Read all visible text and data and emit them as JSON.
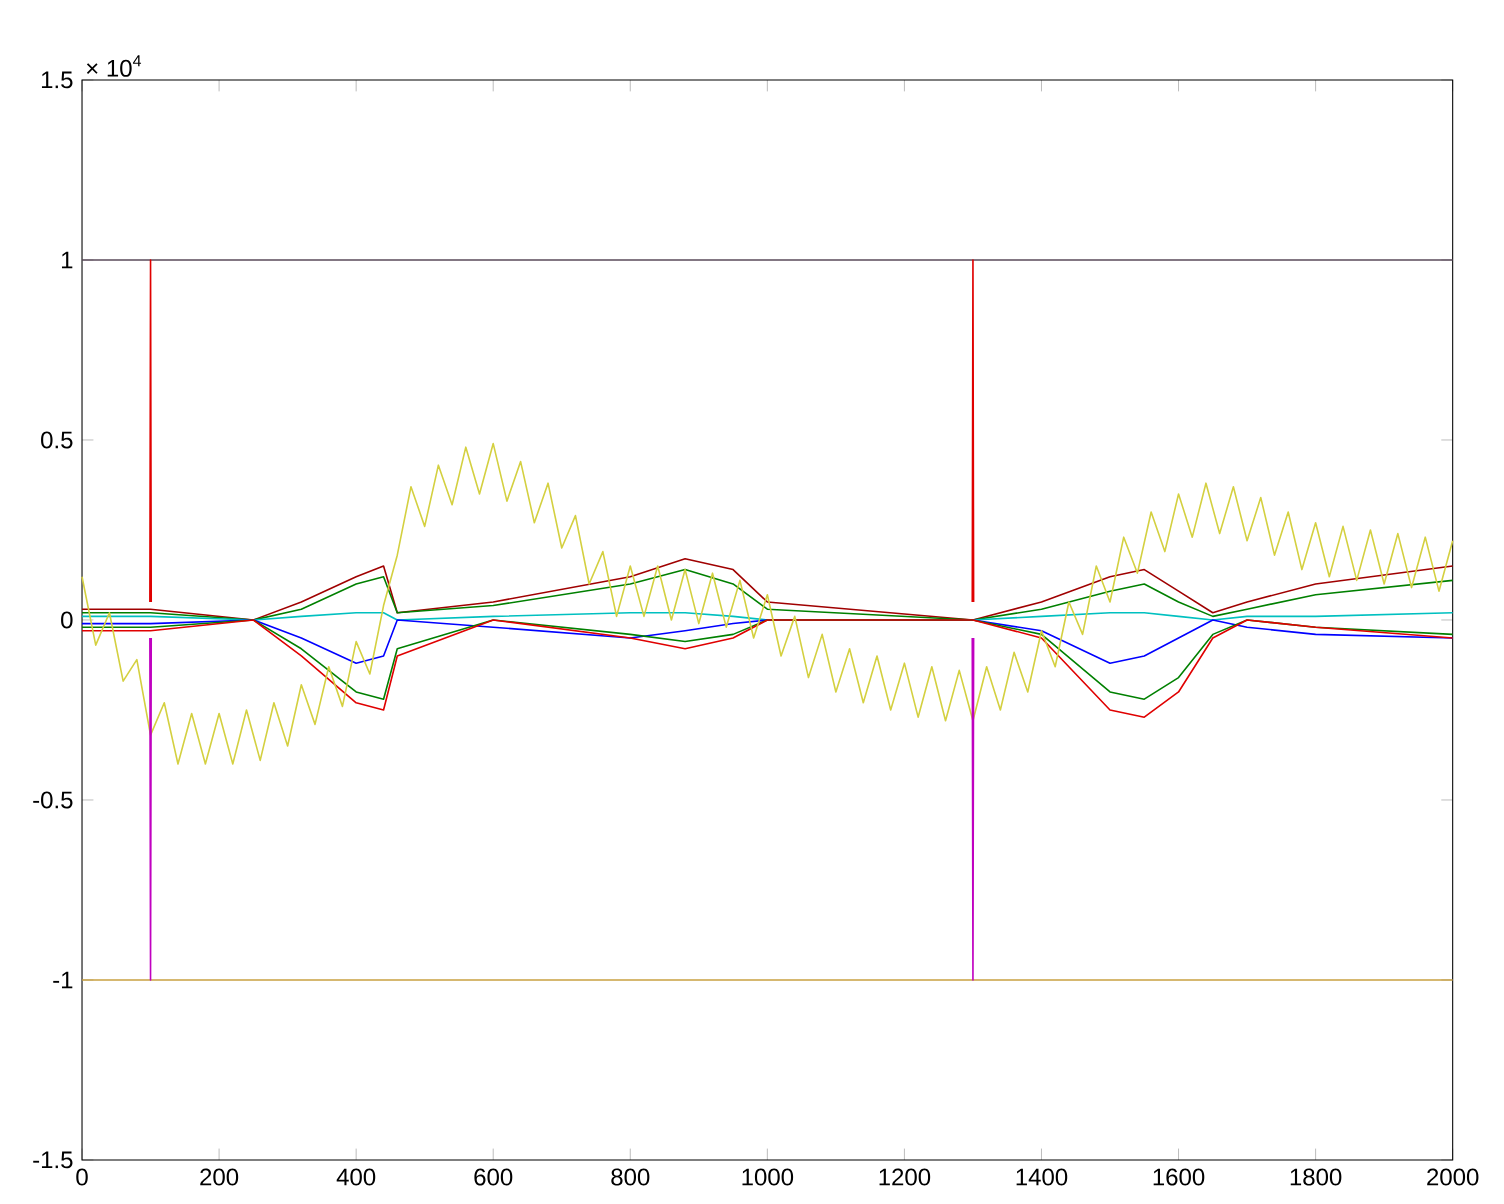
{
  "chart_data": {
    "type": "line",
    "annotations": [
      "× 10$^{4}$"
    ],
    "x": [
      0,
      100,
      250,
      320,
      400,
      440,
      460,
      600,
      800,
      880,
      950,
      1000,
      1300,
      1400,
      1500,
      1550,
      1600,
      1650,
      1700,
      1800,
      2000
    ],
    "xlim": [
      0,
      2000
    ],
    "xticks": [
      0,
      200,
      400,
      600,
      800,
      1000,
      1200,
      1400,
      1600,
      1800,
      2000
    ],
    "ylim": [
      -1.5,
      1.5
    ],
    "yticks": [
      -1.5,
      -1,
      -0.5,
      0,
      0.5,
      1,
      1.5
    ],
    "marker": "none",
    "line_style": "solid",
    "series": [
      {
        "color": "#5a4a5a",
        "x": [
          0,
          2000
        ],
        "values": [
          1,
          1
        ]
      },
      {
        "color": "#c8a040",
        "x": [
          0,
          2000
        ],
        "values": [
          -1,
          -1
        ]
      },
      {
        "color": "#a00000",
        "values": [
          0.03,
          0.03,
          0,
          0.05,
          0.12,
          0.15,
          0.02,
          0.05,
          0.12,
          0.17,
          0.14,
          0.05,
          0,
          0.05,
          0.12,
          0.14,
          0.08,
          0.02,
          0.05,
          0.1,
          0.15
        ]
      },
      {
        "color": "#008000",
        "values": [
          0.02,
          0.02,
          0,
          0.03,
          0.1,
          0.12,
          0.02,
          0.04,
          0.1,
          0.14,
          0.1,
          0.03,
          0,
          0.03,
          0.08,
          0.1,
          0.05,
          0.01,
          0.03,
          0.07,
          0.11
        ]
      },
      {
        "color": "#00c0c0",
        "values": [
          0.01,
          0.01,
          0,
          0.01,
          0.02,
          0.02,
          0,
          0.01,
          0.02,
          0.02,
          0.01,
          0,
          0,
          0.01,
          0.02,
          0.02,
          0.01,
          0,
          0.01,
          0.01,
          0.02
        ]
      },
      {
        "color": "#0000ff",
        "values": [
          -0.01,
          -0.01,
          0,
          -0.05,
          -0.12,
          -0.1,
          0,
          -0.02,
          -0.05,
          -0.03,
          -0.01,
          0,
          0,
          -0.03,
          -0.12,
          -0.1,
          -0.05,
          0,
          -0.02,
          -0.04,
          -0.05
        ]
      },
      {
        "color": "#008000",
        "values": [
          -0.02,
          -0.02,
          0,
          -0.08,
          -0.2,
          -0.22,
          -0.08,
          0,
          -0.04,
          -0.06,
          -0.04,
          0,
          0,
          -0.04,
          -0.2,
          -0.22,
          -0.16,
          -0.04,
          0,
          -0.02,
          -0.04
        ]
      },
      {
        "color": "#e00000",
        "values": [
          -0.03,
          -0.03,
          0,
          -0.1,
          -0.23,
          -0.25,
          -0.1,
          0,
          -0.05,
          -0.08,
          -0.05,
          0,
          0,
          -0.05,
          -0.25,
          -0.27,
          -0.2,
          -0.05,
          0,
          -0.02,
          -0.05
        ]
      },
      {
        "color": "#d4d040",
        "x": [
          0,
          20,
          40,
          60,
          80,
          100,
          120,
          140,
          160,
          180,
          200,
          220,
          240,
          260,
          280,
          300,
          320,
          340,
          360,
          380,
          400,
          420,
          440,
          460,
          480,
          500,
          520,
          540,
          560,
          580,
          600,
          620,
          640,
          660,
          680,
          700,
          720,
          740,
          760,
          780,
          800,
          820,
          840,
          860,
          880,
          900,
          920,
          940,
          960,
          980,
          1000,
          1020,
          1040,
          1060,
          1080,
          1100,
          1120,
          1140,
          1160,
          1180,
          1200,
          1220,
          1240,
          1260,
          1280,
          1300,
          1320,
          1340,
          1360,
          1380,
          1400,
          1420,
          1440,
          1460,
          1480,
          1500,
          1520,
          1540,
          1560,
          1580,
          1600,
          1620,
          1640,
          1660,
          1680,
          1700,
          1720,
          1740,
          1760,
          1780,
          1800,
          1820,
          1840,
          1860,
          1880,
          1900,
          1920,
          1940,
          1960,
          1980,
          2000
        ],
        "values": [
          0.12,
          -0.07,
          0.02,
          -0.17,
          -0.11,
          -0.32,
          -0.23,
          -0.4,
          -0.26,
          -0.4,
          -0.26,
          -0.4,
          -0.25,
          -0.39,
          -0.23,
          -0.35,
          -0.18,
          -0.29,
          -0.13,
          -0.24,
          -0.06,
          -0.15,
          0.04,
          0.18,
          0.37,
          0.26,
          0.43,
          0.32,
          0.48,
          0.35,
          0.49,
          0.33,
          0.44,
          0.27,
          0.38,
          0.2,
          0.29,
          0.1,
          0.19,
          0.01,
          0.15,
          0.01,
          0.15,
          0.0,
          0.14,
          -0.01,
          0.13,
          -0.02,
          0.11,
          -0.05,
          0.07,
          -0.1,
          0.01,
          -0.16,
          -0.04,
          -0.2,
          -0.08,
          -0.23,
          -0.1,
          -0.25,
          -0.12,
          -0.27,
          -0.13,
          -0.28,
          -0.14,
          -0.28,
          -0.13,
          -0.25,
          -0.09,
          -0.2,
          -0.03,
          -0.13,
          0.05,
          -0.04,
          0.15,
          0.05,
          0.23,
          0.13,
          0.3,
          0.19,
          0.35,
          0.23,
          0.38,
          0.24,
          0.37,
          0.22,
          0.34,
          0.18,
          0.3,
          0.14,
          0.27,
          0.12,
          0.26,
          0.11,
          0.25,
          0.1,
          0.24,
          0.09,
          0.23,
          0.08,
          0.22
        ]
      },
      {
        "color": "#e00000",
        "x": [
          99,
          100,
          101,
          700,
          1299,
          1300,
          1301
        ],
        "values": [
          0.05,
          1,
          0.05,
          null,
          0.05,
          1,
          0.05
        ]
      },
      {
        "color": "#c000c0",
        "x": [
          99,
          100,
          101,
          700,
          1299,
          1300,
          1301
        ],
        "values": [
          -0.05,
          -1,
          -0.05,
          null,
          -0.05,
          -1,
          -0.05
        ]
      }
    ]
  }
}
